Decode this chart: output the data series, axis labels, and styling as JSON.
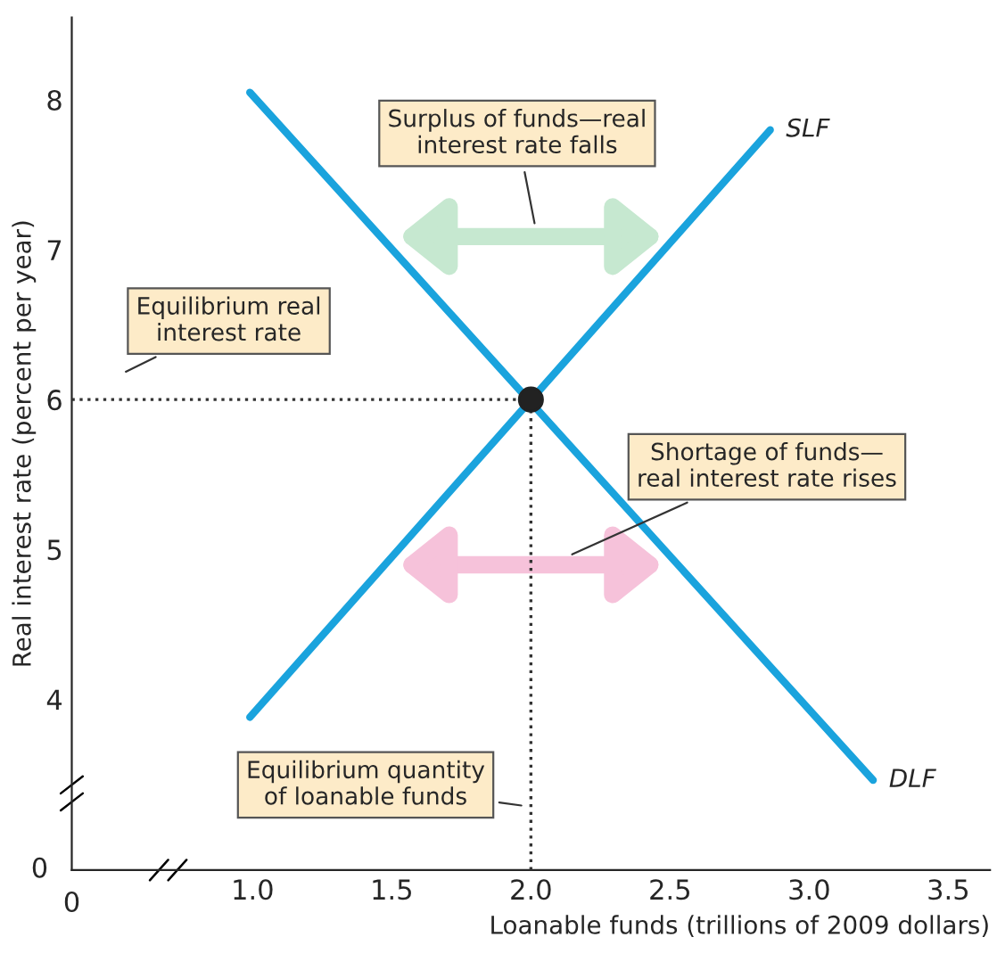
{
  "chart_data": {
    "type": "line",
    "xlabel": "Loanable funds (trillions of 2009 dollars)",
    "ylabel": "Real interest rate (percent per year)",
    "xlim": [
      0.35,
      3.65
    ],
    "ylim": [
      2.86,
      8.55
    ],
    "xticks": [
      {
        "value": 1.0,
        "label": "1.0"
      },
      {
        "value": 1.5,
        "label": "1.5"
      },
      {
        "value": 2.0,
        "label": "2.0"
      },
      {
        "value": 2.5,
        "label": "2.5"
      },
      {
        "value": 3.0,
        "label": "3.0"
      },
      {
        "value": 3.5,
        "label": "3.5"
      }
    ],
    "yticks": [
      4,
      5,
      6,
      7,
      8
    ],
    "grid": false,
    "legend": false,
    "series": [
      {
        "name": "SLF",
        "color": "#1aa3dd",
        "x": [
          0.99,
          2.86
        ],
        "values": [
          3.88,
          7.8
        ]
      },
      {
        "name": "DLF",
        "color": "#1aa3dd",
        "x": [
          0.99,
          3.23
        ],
        "values": [
          8.05,
          3.46
        ]
      },
      {
        "type": "line",
        "line_style": "dotted",
        "color": "#333333",
        "x": [
          0.35,
          2.0
        ],
        "values": [
          6,
          6
        ]
      },
      {
        "type": "line",
        "line_style": "dotted",
        "color": "#333333",
        "x": [
          2.0,
          2.0
        ],
        "values": [
          2.86,
          6
        ]
      },
      {
        "type": "scatter",
        "marker": "circle",
        "color": "#222222",
        "x": [
          2.0
        ],
        "values": [
          6
        ]
      }
    ],
    "annotations": [
      "Surplus of funds—real\ninterest rate falls",
      "Equilibrium real\ninterest rate",
      "Shortage of funds—\nreal interest rate rises",
      "Equilibrium quantity\nof loanable funds",
      "0",
      "0"
    ]
  }
}
